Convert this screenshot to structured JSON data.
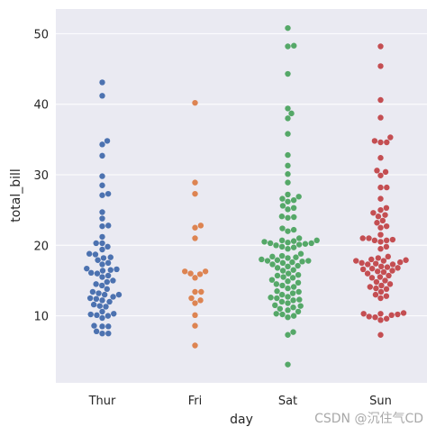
{
  "chart_data": {
    "type": "scatter",
    "subtype": "swarm",
    "xlabel": "day",
    "ylabel": "total_bill",
    "categories": [
      "Thur",
      "Fri",
      "Sat",
      "Sun"
    ],
    "ylim": [
      0.5,
      53.5
    ],
    "yticks": [
      10,
      20,
      30,
      40,
      50
    ],
    "grid": true,
    "legend": "none",
    "background": "#EAEAF2",
    "grid_color": "#FFFFFF",
    "series": [
      {
        "category": "Thur",
        "color": "#4C72B0",
        "values": [
          43.1,
          41.2,
          34.8,
          34.3,
          32.7,
          29.8,
          28.5,
          27.3,
          27.1,
          24.7,
          23.8,
          22.8,
          22.7,
          21.2,
          20.3,
          20.3,
          19.8,
          19.4,
          18.8,
          18.7,
          18.3,
          18.2,
          17.9,
          17.5,
          17.3,
          16.7,
          16.6,
          16.5,
          16.4,
          16.1,
          16.0,
          15.7,
          15.5,
          15.0,
          14.8,
          14.5,
          14.3,
          13.8,
          13.4,
          13.2,
          13.0,
          13.0,
          12.7,
          12.5,
          12.4,
          12.2,
          12.0,
          11.6,
          11.4,
          11.3,
          10.6,
          10.3,
          10.2,
          10.1,
          10.0,
          9.7,
          8.6,
          8.5,
          8.5,
          7.8,
          7.5,
          7.5
        ]
      },
      {
        "category": "Fri",
        "color": "#DD8452",
        "values": [
          40.2,
          28.9,
          27.3,
          22.8,
          22.5,
          21.0,
          16.3,
          16.3,
          16.0,
          15.9,
          15.4,
          13.4,
          13.4,
          12.5,
          12.2,
          11.8,
          10.1,
          8.6,
          5.8
        ]
      },
      {
        "category": "Sat",
        "color": "#55A868",
        "values": [
          50.8,
          48.3,
          48.2,
          44.3,
          39.4,
          38.7,
          38.0,
          35.8,
          32.8,
          31.3,
          30.1,
          28.9,
          27.2,
          26.9,
          26.6,
          26.4,
          26.2,
          25.6,
          25.3,
          25.1,
          24.1,
          24.0,
          23.9,
          22.4,
          22.2,
          22.0,
          21.0,
          20.7,
          20.7,
          20.6,
          20.5,
          20.4,
          20.3,
          20.3,
          20.2,
          20.1,
          20.0,
          19.8,
          19.7,
          19.5,
          18.8,
          18.5,
          18.4,
          18.3,
          18.2,
          18.0,
          17.9,
          17.8,
          17.8,
          17.7,
          17.6,
          17.5,
          17.3,
          17.1,
          17.0,
          16.8,
          16.5,
          16.4,
          16.0,
          15.8,
          15.7,
          15.5,
          15.4,
          15.1,
          14.9,
          14.7,
          14.5,
          14.3,
          14.1,
          13.9,
          13.5,
          13.4,
          13.2,
          13.0,
          12.7,
          12.6,
          12.5,
          12.3,
          12.2,
          12.0,
          11.8,
          11.5,
          11.4,
          11.2,
          11.0,
          10.8,
          10.6,
          10.3,
          10.2,
          10.0,
          9.8,
          7.7,
          7.3,
          3.1
        ]
      },
      {
        "category": "Sun",
        "color": "#C44E52",
        "values": [
          48.2,
          45.4,
          40.6,
          38.1,
          35.3,
          34.8,
          34.6,
          34.6,
          32.4,
          30.6,
          30.4,
          29.9,
          28.2,
          28.2,
          26.6,
          25.3,
          25.0,
          24.6,
          24.3,
          24.1,
          23.5,
          23.2,
          22.7,
          22.5,
          21.5,
          21.0,
          21.0,
          20.8,
          20.7,
          20.7,
          20.5,
          19.8,
          19.5,
          18.4,
          18.2,
          18.0,
          17.9,
          17.8,
          17.8,
          17.6,
          17.5,
          17.4,
          17.3,
          17.3,
          17.0,
          16.9,
          16.8,
          16.7,
          16.6,
          16.4,
          16.3,
          16.2,
          16.0,
          15.7,
          15.5,
          15.4,
          15.0,
          14.8,
          14.5,
          14.3,
          14.1,
          13.9,
          13.8,
          13.4,
          13.0,
          12.8,
          12.5,
          10.4,
          10.3,
          10.3,
          10.2,
          10.1,
          9.9,
          9.8,
          9.6,
          9.4,
          7.3
        ]
      }
    ]
  },
  "watermark": "CSDN @沉住气CD"
}
